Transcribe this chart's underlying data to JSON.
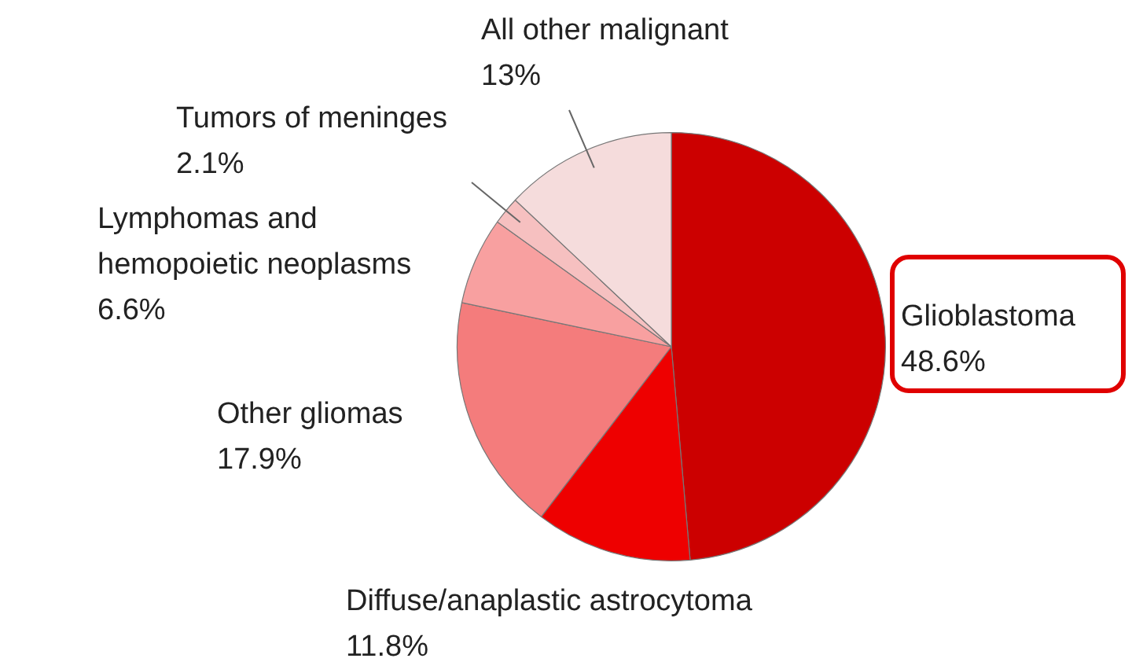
{
  "chart_data": {
    "type": "pie",
    "categories": [
      "Glioblastoma",
      "Diffuse/anaplastic astrocytoma",
      "Other gliomas",
      "Lymphomas and hemopoietic neoplasms",
      "Tumors of meninges",
      "All other malignant"
    ],
    "values": [
      48.6,
      11.8,
      17.9,
      6.6,
      2.1,
      13
    ],
    "colors": [
      "#cc0000",
      "#ee0000",
      "#f47c7c",
      "#f8a0a0",
      "#f6c0c0",
      "#f5dcdc"
    ],
    "value_labels": [
      "48.6%",
      "11.8%",
      "17.9%",
      "6.6%",
      "2.1%",
      "13%"
    ],
    "legend": false
  }
}
